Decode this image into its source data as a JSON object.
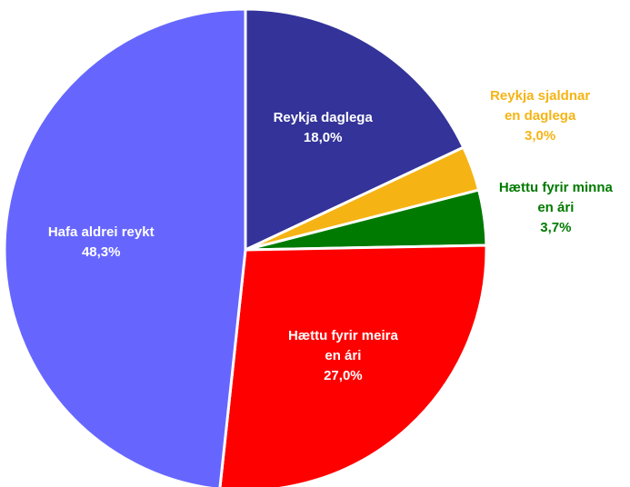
{
  "chart_data": {
    "type": "pie",
    "categories": [
      "Reykja daglega",
      "Reykja sjaldnar en daglega",
      "Hættu fyrir minna en ári",
      "Hættu fyrir meira en ári",
      "Hafa aldrei reykt"
    ],
    "values": [
      18.0,
      3.0,
      3.7,
      27.0,
      48.3
    ],
    "value_labels": [
      "18,0%",
      "3,0%",
      "3,7%",
      "27,0%",
      "48,3%"
    ],
    "colors": [
      "#333399",
      "#f5b414",
      "#007a00",
      "#ff0000",
      "#6666ff"
    ]
  }
}
